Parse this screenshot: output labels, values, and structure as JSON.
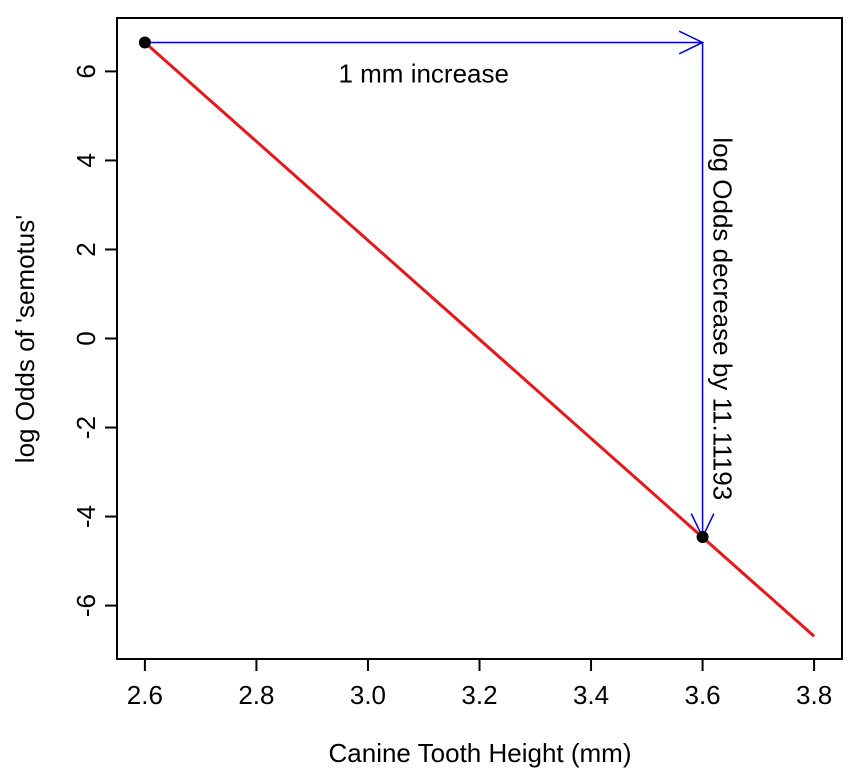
{
  "chart_data": {
    "type": "line",
    "title": "",
    "xlabel": "Canine Tooth Height (mm)",
    "ylabel": "log Odds of 'semotus'",
    "xlim": [
      2.55,
      3.85
    ],
    "ylim": [
      -7.2,
      7.2
    ],
    "x_ticks": [
      "2.6",
      "2.8",
      "3.0",
      "3.2",
      "3.4",
      "3.6",
      "3.8"
    ],
    "y_ticks": [
      "-6",
      "-4",
      "-2",
      "0",
      "2",
      "4",
      "6"
    ],
    "grid": false,
    "series": [
      {
        "x": [
          2.6,
          3.8
        ],
        "y": [
          6.65,
          -6.69
        ],
        "color": "#e31a1c"
      }
    ],
    "points": [
      {
        "x": 2.6,
        "y": 6.65
      },
      {
        "x": 3.6,
        "y": -4.46
      }
    ],
    "annotations": [
      {
        "text": "1 mm increase",
        "from": [
          2.6,
          6.65
        ],
        "to": [
          3.6,
          6.65
        ],
        "color": "#0000cc"
      },
      {
        "text": "log Odds decrease by 11.11193",
        "from": [
          3.6,
          6.65
        ],
        "to": [
          3.6,
          -4.46
        ],
        "color": "#0000cc"
      }
    ]
  }
}
